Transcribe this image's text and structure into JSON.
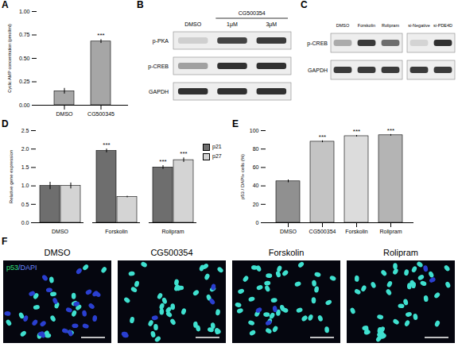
{
  "chart_data": [
    {
      "panel": "A",
      "type": "bar",
      "categories": [
        "DMSO",
        "CG500345"
      ],
      "values": [
        0.15,
        0.68
      ],
      "errors": [
        0.03,
        0.02
      ],
      "color": "#a6a6a6",
      "y_label": "Cyclic AMP concentration (pmol/ml)",
      "ylim": [
        0,
        1
      ],
      "yticks": [
        {
          "value": 0,
          "label": "0.00"
        },
        0.25,
        {
          "value": 0.5,
          "label": "0.50"
        },
        0.75,
        {
          "value": 1,
          "label": "1.00"
        }
      ],
      "annotations": [
        {
          "category": "CG500345",
          "text": "***"
        }
      ]
    },
    {
      "panel": "D",
      "type": "bar",
      "categories": [
        "DMSO",
        "Forskolin",
        "Rolipram"
      ],
      "series": [
        {
          "name": "p21",
          "color": "#6e6e6e",
          "values": [
            1.0,
            1.95,
            1.5
          ],
          "errors": [
            0.1,
            0.05,
            0.05
          ]
        },
        {
          "name": "p27",
          "color": "#d4d4d4",
          "values": [
            1.0,
            0.7,
            1.7
          ],
          "errors": [
            0.08,
            0.02,
            0.06
          ]
        }
      ],
      "y_label": "Relative gene expression",
      "ylim": [
        0,
        2.5
      ],
      "yticks": [
        {
          "value": 0,
          "label": "0.0"
        },
        0.5,
        {
          "value": 1,
          "label": "1.0"
        },
        1.5,
        {
          "value": 2,
          "label": "2.0"
        },
        2.5
      ],
      "legend": "right",
      "annotations": [
        {
          "category": "Forskolin",
          "series": "p21",
          "text": "***"
        },
        {
          "category": "Rolipram",
          "series": "p21",
          "text": "***"
        },
        {
          "category": "Rolipram",
          "series": "p27",
          "text": "***"
        }
      ]
    },
    {
      "panel": "E",
      "type": "bar",
      "categories": [
        "DMSO",
        "CG500354",
        "Forskolin",
        "Rolipram"
      ],
      "values": [
        45,
        88,
        94,
        95
      ],
      "errors": [
        1.5,
        1,
        0.8,
        0.8
      ],
      "colors": [
        "#909090",
        "#c4c4c4",
        "#dcdcdc",
        "#b4b4b4"
      ],
      "y_label": "p53 / DAPI+ cells (%)",
      "ylim": [
        0,
        100
      ],
      "yticks": [
        0,
        20,
        40,
        60,
        80,
        100
      ],
      "annotations": [
        {
          "category": "CG500354",
          "text": "***"
        },
        {
          "category": "Forskolin",
          "text": "***"
        },
        {
          "category": "Rolipram",
          "text": "***"
        }
      ]
    }
  ],
  "blots": [
    {
      "panel": "B",
      "lane_groups": [
        {
          "name": "DMSO",
          "lanes": [
            null
          ]
        },
        {
          "name": "CG500354",
          "lanes": [
            "1μM",
            "3μM"
          ]
        }
      ],
      "rows": [
        {
          "name": "p-PKA",
          "intensity": [
            0.12,
            0.8,
            0.85
          ]
        },
        {
          "name": "p-CREB",
          "intensity": [
            0.35,
            0.9,
            0.9
          ]
        },
        {
          "name": "GAPDH",
          "intensity": [
            0.9,
            0.9,
            0.9
          ]
        }
      ]
    },
    {
      "panel": "C",
      "boxes": [
        {
          "lanes": [
            "DMSO",
            "Forskolin",
            "Rolipram"
          ]
        },
        {
          "lanes": [
            "si-Negative",
            "si-PDE4D"
          ]
        }
      ],
      "rows": [
        {
          "name": "p-CREB",
          "intensity": [
            0.3,
            0.85,
            0.6,
            0.1,
            0.9
          ]
        },
        {
          "name": "GAPDH",
          "intensity": [
            0.85,
            0.85,
            0.85,
            0.85,
            0.85
          ]
        }
      ]
    }
  ],
  "micrographs": {
    "panel": "F",
    "channels": [
      {
        "text": "p53",
        "color": "#33e07a"
      },
      {
        "text": "/DAPI",
        "color": "#6a86ff"
      }
    ],
    "images": [
      "DMSO",
      "CG500354",
      "Forskolin",
      "Rolipram"
    ]
  }
}
